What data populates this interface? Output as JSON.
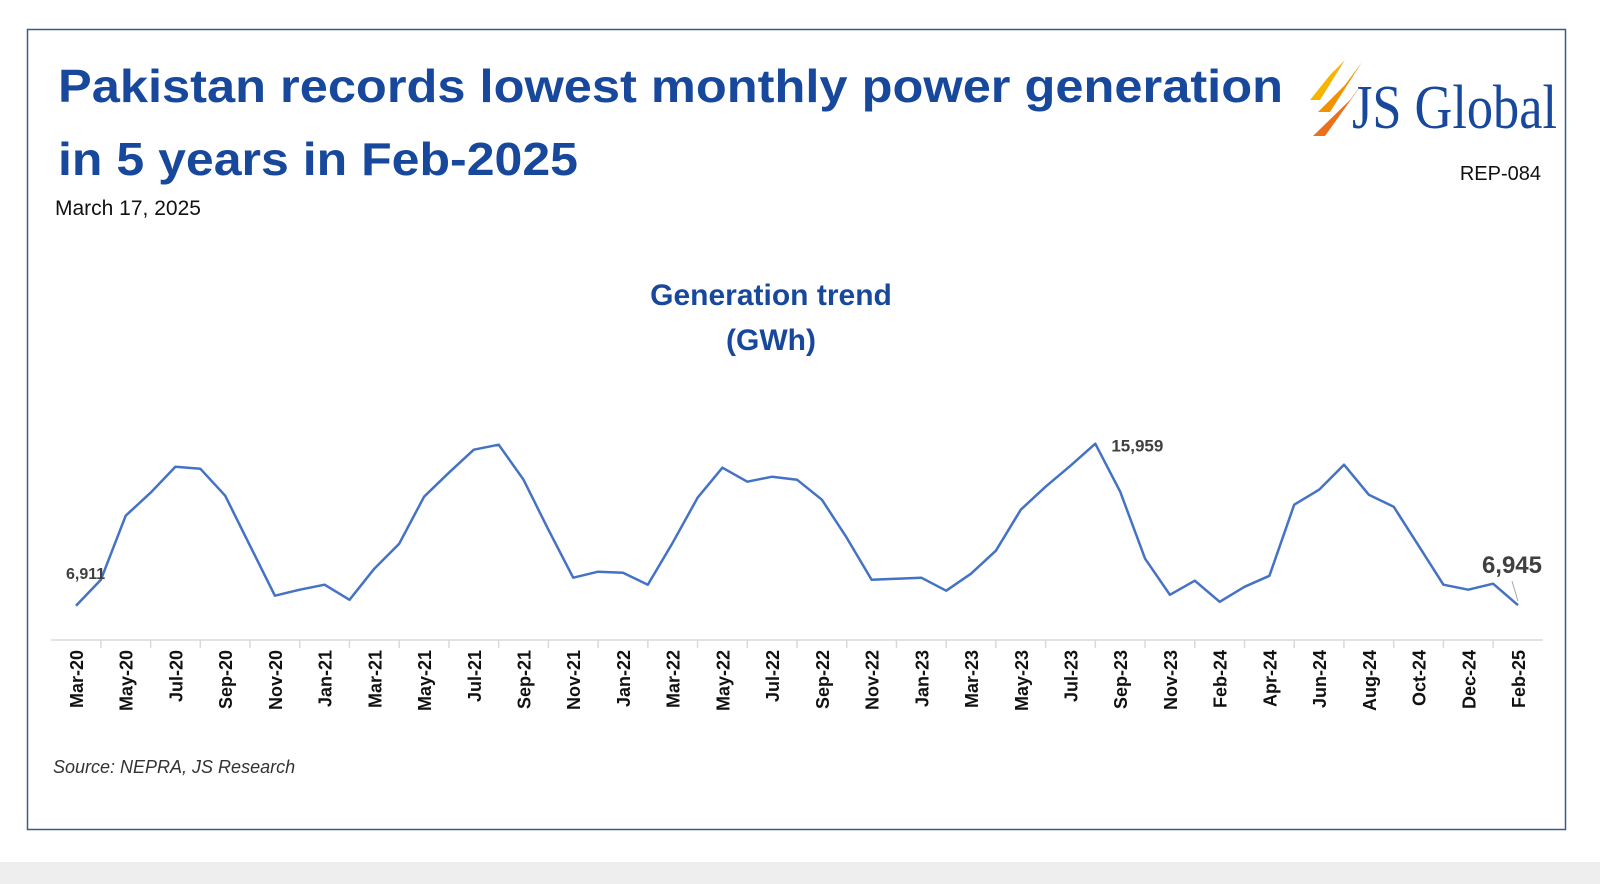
{
  "header": {
    "title": [
      "Pakistan records lowest monthly power generation",
      "in 5 years in Feb-2025"
    ],
    "date": "March 17, 2025",
    "logo": "JS Global",
    "report_id": "REP-084"
  },
  "chart_data": {
    "type": "line",
    "title": "Generation trend",
    "subtitle": "(GWh)",
    "source": "Source: NEPRA, JS Research",
    "categories": [
      "Mar-20",
      null,
      "May-20",
      null,
      "Jul-20",
      null,
      "Sep-20",
      null,
      "Nov-20",
      null,
      "Jan-21",
      null,
      "Mar-21",
      null,
      "May-21",
      null,
      "Jul-21",
      null,
      "Sep-21",
      null,
      "Nov-21",
      null,
      "Jan-22",
      null,
      "Mar-22",
      null,
      "May-22",
      null,
      "Jul-22",
      null,
      "Sep-22",
      null,
      "Nov-22",
      null,
      "Jan-23",
      null,
      "Mar-23",
      null,
      "May-23",
      null,
      "Jul-23",
      null,
      "Sep-23",
      null,
      "Nov-23",
      null,
      "Feb-24",
      null,
      "Apr-24",
      null,
      "Jun-24",
      null,
      "Aug-24",
      null,
      "Oct-24",
      null,
      "Dec-24",
      null,
      "Feb-25"
    ],
    "series": [
      {
        "name": "Generation",
        "color": "#4472c4",
        "values": [
          6911,
          8363,
          11938,
          13222,
          14674,
          14563,
          13055,
          10262,
          7470,
          7805,
          8084,
          7246,
          8977,
          10374,
          12999,
          14339,
          15624,
          15900,
          13948,
          11155,
          8475,
          8810,
          8754,
          8084,
          10430,
          12943,
          14619,
          13836,
          14116,
          13948,
          12831,
          10709,
          8363,
          8419,
          8475,
          7749,
          8698,
          9983,
          12273,
          13557,
          14730,
          15959,
          13278,
          9536,
          7525,
          8307,
          7134,
          7972,
          8586,
          12552,
          13390,
          14786,
          13110,
          12440,
          10262,
          8084,
          7805,
          8140,
          6945
        ],
        "value_labels": [
          "6,911",
          null,
          null,
          null,
          null,
          null,
          null,
          null,
          null,
          null,
          null,
          null,
          null,
          null,
          null,
          null,
          null,
          null,
          null,
          null,
          null,
          null,
          null,
          null,
          null,
          null,
          null,
          null,
          null,
          null,
          null,
          null,
          null,
          null,
          null,
          null,
          null,
          null,
          null,
          null,
          null,
          "15,959",
          null,
          null,
          null,
          null,
          null,
          null,
          null,
          null,
          null,
          null,
          null,
          null,
          null,
          null,
          null,
          null,
          "6,945"
        ]
      }
    ],
    "ylim": [
      5000,
      17000
    ],
    "grid": false
  }
}
